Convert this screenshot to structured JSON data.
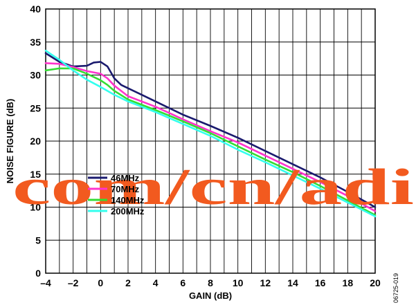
{
  "chart_data": {
    "type": "line",
    "xlabel": "GAIN (dB)",
    "ylabel": "NOISE FIGURE (dB)",
    "xlim": [
      -4,
      20
    ],
    "ylim": [
      0,
      40
    ],
    "x_ticks": [
      "–4",
      "–2",
      "0",
      "2",
      "4",
      "6",
      "8",
      "10",
      "12",
      "14",
      "16",
      "18",
      "20"
    ],
    "y_ticks": [
      "0",
      "5",
      "10",
      "15",
      "20",
      "25",
      "30",
      "35",
      "40"
    ],
    "grid": true,
    "legend_position": "center-left",
    "series": [
      {
        "name": "46MHz",
        "color": "#1a1a6e",
        "points": [
          [
            -4,
            33.3
          ],
          [
            -3,
            32.0
          ],
          [
            -2,
            31.3
          ],
          [
            -1,
            31.4
          ],
          [
            -0.5,
            31.9
          ],
          [
            0,
            32.0
          ],
          [
            0.5,
            31.3
          ],
          [
            1,
            29.5
          ],
          [
            1.5,
            28.5
          ],
          [
            2,
            28.0
          ],
          [
            3,
            27.0
          ],
          [
            4,
            26.0
          ],
          [
            6,
            24.0
          ],
          [
            8,
            22.3
          ],
          [
            10,
            20.5
          ],
          [
            12,
            18.5
          ],
          [
            14,
            16.5
          ],
          [
            16,
            14.5
          ],
          [
            18,
            12.3
          ],
          [
            20,
            10.0
          ]
        ]
      },
      {
        "name": "70MHz",
        "color": "#ff33cc",
        "points": [
          [
            -4,
            31.8
          ],
          [
            -3,
            31.7
          ],
          [
            -2,
            31.2
          ],
          [
            -1,
            30.6
          ],
          [
            0,
            30.2
          ],
          [
            0.5,
            29.5
          ],
          [
            1,
            28.4
          ],
          [
            2,
            26.8
          ],
          [
            3,
            26.0
          ],
          [
            4,
            25.2
          ],
          [
            6,
            23.3
          ],
          [
            8,
            21.5
          ],
          [
            10,
            19.8
          ],
          [
            12,
            17.8
          ],
          [
            14,
            15.8
          ],
          [
            16,
            13.8
          ],
          [
            18,
            11.7
          ],
          [
            20,
            9.4
          ]
        ]
      },
      {
        "name": "140MHz",
        "color": "#33dd33",
        "points": [
          [
            -4,
            30.7
          ],
          [
            -3,
            31.0
          ],
          [
            -2,
            31.0
          ],
          [
            -1,
            30.2
          ],
          [
            0,
            29.2
          ],
          [
            0.5,
            28.5
          ],
          [
            1,
            27.6
          ],
          [
            2,
            26.3
          ],
          [
            3,
            25.5
          ],
          [
            4,
            24.7
          ],
          [
            6,
            23.0
          ],
          [
            8,
            21.2
          ],
          [
            10,
            19.2
          ],
          [
            12,
            17.2
          ],
          [
            14,
            15.3
          ],
          [
            16,
            13.2
          ],
          [
            18,
            11.0
          ],
          [
            20,
            8.8
          ]
        ]
      },
      {
        "name": "200MHz",
        "color": "#33ffee",
        "points": [
          [
            -4,
            33.7
          ],
          [
            -3,
            32.3
          ],
          [
            -2,
            30.7
          ],
          [
            -1,
            29.3
          ],
          [
            0,
            28.2
          ],
          [
            1,
            27.0
          ],
          [
            2,
            26.0
          ],
          [
            4,
            24.4
          ],
          [
            6,
            22.6
          ],
          [
            8,
            20.8
          ],
          [
            10,
            18.7
          ],
          [
            12,
            16.8
          ],
          [
            14,
            14.8
          ],
          [
            16,
            12.8
          ],
          [
            18,
            10.7
          ],
          [
            20,
            8.6
          ]
        ]
      }
    ]
  },
  "figure_code": "06725-019",
  "watermark": "com/cn/adi"
}
